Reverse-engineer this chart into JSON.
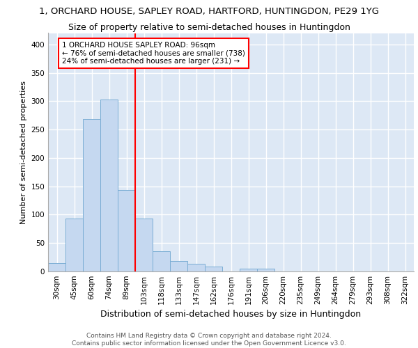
{
  "title_line1": "1, ORCHARD HOUSE, SAPLEY ROAD, HARTFORD, HUNTINGDON, PE29 1YG",
  "title_line2": "Size of property relative to semi-detached houses in Huntingdon",
  "xlabel": "Distribution of semi-detached houses by size in Huntingdon",
  "ylabel": "Number of semi-detached properties",
  "footnote": "Contains HM Land Registry data © Crown copyright and database right 2024.\nContains public sector information licensed under the Open Government Licence v3.0.",
  "bar_labels": [
    "30sqm",
    "45sqm",
    "60sqm",
    "74sqm",
    "89sqm",
    "103sqm",
    "118sqm",
    "133sqm",
    "147sqm",
    "162sqm",
    "176sqm",
    "191sqm",
    "206sqm",
    "220sqm",
    "235sqm",
    "249sqm",
    "264sqm",
    "279sqm",
    "293sqm",
    "308sqm",
    "322sqm"
  ],
  "bar_values": [
    15,
    93,
    269,
    303,
    143,
    93,
    35,
    18,
    13,
    9,
    0,
    5,
    5,
    0,
    0,
    0,
    0,
    0,
    0,
    0,
    0
  ],
  "bar_color": "#c5d8f0",
  "bar_edge_color": "#7aadd4",
  "background_color": "#dde8f5",
  "grid_color": "#ffffff",
  "property_line_x": 4.5,
  "annotation_text": "1 ORCHARD HOUSE SAPLEY ROAD: 96sqm\n← 76% of semi-detached houses are smaller (738)\n24% of semi-detached houses are larger (231) →",
  "ylim": [
    0,
    420
  ],
  "yticks": [
    0,
    50,
    100,
    150,
    200,
    250,
    300,
    350,
    400
  ],
  "title1_fontsize": 9.5,
  "title2_fontsize": 9.0,
  "ylabel_fontsize": 8.0,
  "xlabel_fontsize": 9.0,
  "tick_fontsize": 7.5,
  "annot_fontsize": 7.5,
  "footnote_fontsize": 6.5
}
